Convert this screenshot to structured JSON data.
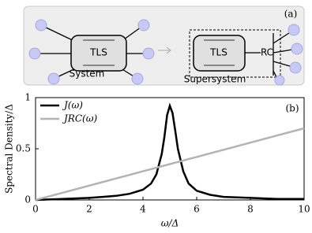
{
  "diagram": {
    "panel_label": "(a)",
    "system": {
      "tls": "TLS",
      "label": "System"
    },
    "supersystem": {
      "tls": "TLS",
      "rc": "RC",
      "label": "Supersystem"
    }
  },
  "chart_data": {
    "type": "line",
    "panel_label": "(b)",
    "xlabel": "ω/Δ",
    "ylabel": "Spectral Density/Δ",
    "x": [
      0,
      1,
      2,
      3,
      3.5,
      4,
      4.3,
      4.5,
      4.7,
      4.8,
      4.9,
      5,
      5.1,
      5.2,
      5.3,
      5.5,
      5.7,
      6,
      6.5,
      7,
      8,
      9,
      10
    ],
    "series": [
      {
        "name": "J(ω)",
        "color": "#000000",
        "values": [
          0,
          0.01,
          0.02,
          0.04,
          0.06,
          0.1,
          0.16,
          0.25,
          0.45,
          0.62,
          0.83,
          0.92,
          0.85,
          0.68,
          0.5,
          0.28,
          0.16,
          0.09,
          0.05,
          0.03,
          0.02,
          0.01,
          0.01
        ]
      },
      {
        "name": "JRC(ω)",
        "color": "#b3b3b3",
        "values": [
          0,
          0.07,
          0.14,
          0.21,
          0.245,
          0.28,
          0.301,
          0.315,
          0.329,
          0.336,
          0.343,
          0.35,
          0.357,
          0.364,
          0.371,
          0.385,
          0.399,
          0.42,
          0.455,
          0.49,
          0.56,
          0.63,
          0.7
        ]
      }
    ],
    "xlim": [
      0,
      10
    ],
    "xticks": [
      0,
      2,
      4,
      6,
      8,
      10
    ],
    "ylim": [
      0,
      1
    ],
    "yticks": [
      0,
      0.5,
      1
    ],
    "legend": "upper-left"
  }
}
